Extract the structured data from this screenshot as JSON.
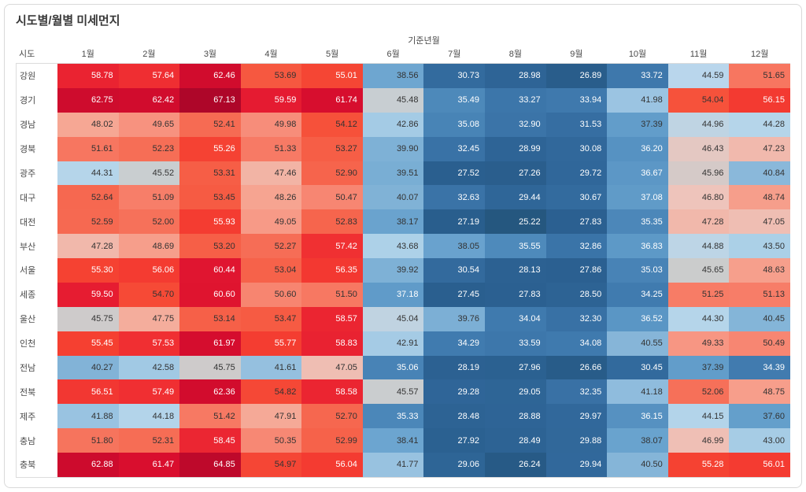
{
  "title": "시도별/월별 미세먼지",
  "row_axis_label": "시도",
  "column_group_label": "기준년월",
  "chart_data": {
    "type": "heatmap",
    "columns": [
      "1월",
      "2월",
      "3월",
      "4월",
      "5월",
      "6월",
      "7월",
      "8월",
      "9월",
      "10월",
      "11월",
      "12월"
    ],
    "rows": [
      "강원",
      "경기",
      "경남",
      "경북",
      "광주",
      "대구",
      "대전",
      "부산",
      "서울",
      "세종",
      "울산",
      "인천",
      "전남",
      "전북",
      "제주",
      "충남",
      "충북"
    ],
    "values": [
      [
        58.78,
        57.64,
        62.46,
        53.69,
        55.01,
        38.56,
        30.73,
        28.98,
        26.89,
        33.72,
        44.59,
        51.65
      ],
      [
        62.75,
        62.42,
        67.13,
        59.59,
        61.74,
        45.48,
        35.49,
        33.27,
        33.94,
        41.98,
        54.04,
        56.15
      ],
      [
        48.02,
        49.65,
        52.41,
        49.98,
        54.12,
        42.86,
        35.08,
        32.9,
        31.53,
        37.39,
        44.96,
        44.28
      ],
      [
        51.61,
        52.23,
        55.26,
        51.33,
        53.27,
        39.9,
        32.45,
        28.99,
        30.08,
        36.2,
        46.43,
        47.23
      ],
      [
        44.31,
        45.52,
        53.31,
        47.46,
        52.9,
        39.51,
        27.52,
        27.26,
        29.72,
        36.67,
        45.96,
        40.84
      ],
      [
        52.64,
        51.09,
        53.45,
        48.26,
        50.47,
        40.07,
        32.63,
        29.44,
        30.67,
        37.08,
        46.8,
        48.74
      ],
      [
        52.59,
        52.0,
        55.93,
        49.05,
        52.83,
        38.17,
        27.19,
        25.22,
        27.83,
        35.35,
        47.28,
        47.05
      ],
      [
        47.28,
        48.69,
        53.2,
        52.27,
        57.42,
        43.68,
        38.05,
        35.55,
        32.86,
        36.83,
        44.88,
        43.5
      ],
      [
        55.3,
        56.06,
        60.44,
        53.04,
        56.35,
        39.92,
        30.54,
        28.13,
        27.86,
        35.03,
        45.65,
        48.63
      ],
      [
        59.5,
        54.7,
        60.6,
        50.6,
        51.5,
        37.18,
        27.45,
        27.83,
        28.5,
        34.25,
        51.25,
        51.13
      ],
      [
        45.75,
        47.75,
        53.14,
        53.47,
        58.57,
        45.04,
        39.76,
        34.04,
        32.3,
        36.52,
        44.3,
        40.45
      ],
      [
        55.45,
        57.53,
        61.97,
        55.77,
        58.83,
        42.91,
        34.29,
        33.59,
        34.08,
        40.55,
        49.33,
        50.49
      ],
      [
        40.27,
        42.58,
        45.75,
        41.61,
        47.05,
        35.06,
        28.19,
        27.96,
        26.66,
        30.45,
        37.39,
        34.39
      ],
      [
        56.51,
        57.49,
        62.36,
        54.82,
        58.58,
        45.57,
        29.28,
        29.05,
        32.35,
        41.18,
        52.06,
        48.75
      ],
      [
        41.88,
        44.18,
        51.42,
        47.91,
        52.7,
        35.33,
        28.48,
        28.88,
        29.97,
        36.15,
        44.15,
        37.6
      ],
      [
        51.8,
        52.31,
        58.45,
        50.35,
        52.99,
        38.41,
        27.92,
        28.49,
        29.88,
        38.07,
        46.99,
        43.0
      ],
      [
        62.88,
        61.47,
        64.85,
        54.97,
        56.04,
        41.77,
        29.06,
        26.24,
        29.94,
        40.5,
        55.28,
        56.01
      ]
    ],
    "value_decimals": 2,
    "value_range": [
      25.22,
      67.13
    ],
    "legend_position": "none",
    "color_scale": {
      "type": "diverging-red-blue",
      "stops": [
        [
          25.0,
          "#25567E"
        ],
        [
          27.5,
          "#2A5F8F"
        ],
        [
          30.0,
          "#31689B"
        ],
        [
          32.5,
          "#3972A6"
        ],
        [
          34.5,
          "#417CB0"
        ],
        [
          36.5,
          "#5A96C5"
        ],
        [
          38.5,
          "#6DA6D0"
        ],
        [
          40.5,
          "#85B5D8"
        ],
        [
          42.0,
          "#9BC4E2"
        ],
        [
          43.5,
          "#ABD0E7"
        ],
        [
          44.7,
          "#BAD7EC"
        ],
        [
          45.65,
          "#CBCCCC"
        ],
        [
          46.7,
          "#EDC6BE"
        ],
        [
          48.0,
          "#F6A794"
        ],
        [
          49.5,
          "#F79481"
        ],
        [
          51.0,
          "#F77F6A"
        ],
        [
          52.5,
          "#F66A52"
        ],
        [
          54.0,
          "#F6533B"
        ],
        [
          55.5,
          "#F53F31"
        ],
        [
          57.5,
          "#F02F32"
        ],
        [
          59.5,
          "#E61C31"
        ],
        [
          61.5,
          "#D90E2E"
        ],
        [
          63.5,
          "#C80A2C"
        ],
        [
          65.5,
          "#B9082A"
        ],
        [
          67.2,
          "#AE0629"
        ]
      ],
      "white_text_below": 37.35,
      "white_text_above": 55.0,
      "dark_text_color": "#333333",
      "white_text_color": "#FFFFFF"
    }
  }
}
